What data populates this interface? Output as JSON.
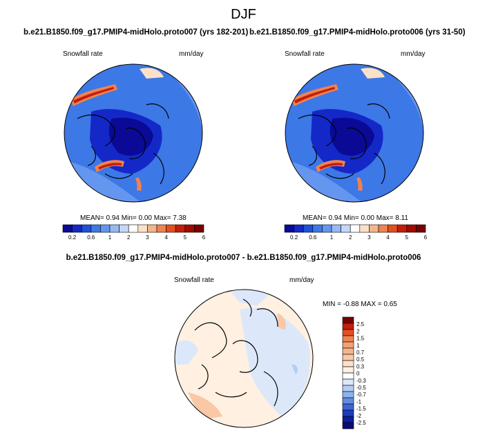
{
  "page": {
    "title": "DJF"
  },
  "chart_data": [
    {
      "type": "heatmap",
      "projection": "north-polar-stereographic",
      "title": "b.e21.B1850.f09_g17.PMIP4-midHolo.proto007 (yrs 182-201)",
      "variable": "Snowfall rate",
      "units": "mm/day",
      "stats": {
        "mean_label": "MEAN=",
        "mean": "0.94",
        "min_label": "Min=",
        "min": "0.00",
        "max_label": "Max=",
        "max": "7.38"
      },
      "colorbar": {
        "orientation": "horizontal",
        "colors": [
          "#0a0a96",
          "#1428c8",
          "#1e50dc",
          "#3c78e6",
          "#6496f0",
          "#96b9f5",
          "#c3d7fa",
          "#ffffff",
          "#fae1c8",
          "#f5b48c",
          "#f08250",
          "#e1501e",
          "#c31e0a",
          "#a00a00",
          "#780000"
        ],
        "tick_labels": [
          "0.2",
          "0.6",
          "1",
          "2",
          "3",
          "4",
          "5",
          "6"
        ]
      }
    },
    {
      "type": "heatmap",
      "projection": "north-polar-stereographic",
      "title": "b.e21.B1850.f09_g17.PMIP4-midHolo.proto006 (yrs 31-50)",
      "variable": "Snowfall rate",
      "units": "mm/day",
      "stats": {
        "mean_label": "MEAN=",
        "mean": "0.94",
        "min_label": "Min=",
        "min": "0.00",
        "max_label": "Max=",
        "max": "8.11"
      },
      "colorbar": {
        "orientation": "horizontal",
        "colors": [
          "#0a0a96",
          "#1428c8",
          "#1e50dc",
          "#3c78e6",
          "#6496f0",
          "#96b9f5",
          "#c3d7fa",
          "#ffffff",
          "#fae1c8",
          "#f5b48c",
          "#f08250",
          "#e1501e",
          "#c31e0a",
          "#a00a00",
          "#780000"
        ],
        "tick_labels": [
          "0.2",
          "0.6",
          "1",
          "2",
          "3",
          "4",
          "5",
          "6"
        ]
      }
    },
    {
      "type": "heatmap",
      "projection": "north-polar-stereographic",
      "title": "b.e21.B1850.f09_g17.PMIP4-midHolo.proto007 - b.e21.B1850.f09_g17.PMIP4-midHolo.proto006",
      "variable": "Snowfall rate",
      "units": "mm/day",
      "stats": {
        "min_label": "MIN =",
        "min": "-0.88",
        "max_label": "MAX =",
        "max": "0.65"
      },
      "colorbar": {
        "orientation": "vertical",
        "colors": [
          "#780000",
          "#c31e0a",
          "#e1501e",
          "#f08250",
          "#f5a073",
          "#f5b48c",
          "#fac8a5",
          "#fae1c8",
          "#fff0e1",
          "#ffffff",
          "#dce8fa",
          "#b4cdf5",
          "#8cb4f0",
          "#648cdc",
          "#3c64d2",
          "#1e3cbe",
          "#0a1ea0",
          "#0a0a78"
        ],
        "tick_labels": [
          "2.5",
          "2",
          "1.5",
          "1",
          "0.7",
          "0.5",
          "0.3",
          "0",
          "-0.3",
          "-0.5",
          "-0.7",
          "-1",
          "-1.5",
          "-2",
          "-2.5"
        ]
      }
    }
  ]
}
